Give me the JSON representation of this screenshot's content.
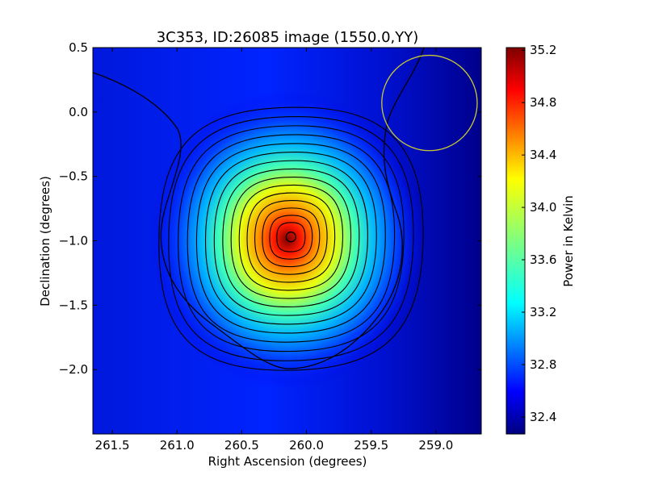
{
  "chart_data": {
    "type": "heatmap",
    "title": "3C353, ID:26085 image (1550.0,YY)",
    "xlabel": "Right Ascension (degrees)",
    "ylabel": "Declination (degrees)",
    "colorbar_label": "Power in Kelvin",
    "colormap": "jet",
    "xlim": [
      261.65,
      258.65
    ],
    "ylim": [
      -2.5,
      0.5
    ],
    "x_inverted": true,
    "x_ticks": [
      261.5,
      261.0,
      260.5,
      260.0,
      259.5,
      259.0
    ],
    "x_tick_labels": [
      "261.5",
      "261.0",
      "260.5",
      "260.0",
      "259.5",
      "259.0"
    ],
    "y_ticks": [
      0.5,
      0.0,
      -0.5,
      -1.0,
      -1.5,
      -2.0
    ],
    "y_tick_labels": [
      "0.5",
      "0.0",
      "−0.5",
      "−1.0",
      "−1.5",
      "−2.0"
    ],
    "colorbar_range": [
      32.27,
      35.22
    ],
    "colorbar_ticks": [
      35.2,
      34.8,
      34.4,
      34.0,
      33.6,
      33.2,
      32.8,
      32.4
    ],
    "colorbar_tick_labels": [
      "35.2",
      "34.8",
      "34.4",
      "34.0",
      "33.6",
      "33.2",
      "32.8",
      "32.4"
    ],
    "source_peak": {
      "ra": 260.12,
      "dec": -0.97,
      "value": 35.2
    },
    "beam_circle": {
      "ra": 259.05,
      "dec": 0.07,
      "radius_deg": 0.37,
      "color": "#c8c832"
    },
    "contour_count": 15,
    "colors": {
      "contour": "#000000",
      "beam": "#c8c832"
    }
  }
}
